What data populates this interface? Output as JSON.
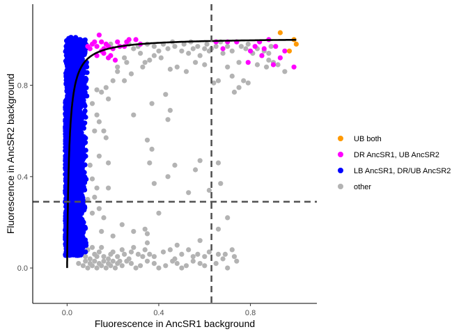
{
  "chart_data": {
    "type": "scatter",
    "xlabel": "Fluorescence in AncSR1 background",
    "ylabel": "Fluorescence in AncSR2 background",
    "xlim": [
      -0.15,
      1.09
    ],
    "ylim": [
      -0.155,
      1.155
    ],
    "x_ticks": [
      0.0,
      0.4,
      0.8
    ],
    "x_tick_labels": [
      "0.0",
      "0.4",
      "0.8"
    ],
    "y_ticks": [
      0.0,
      0.4,
      0.8
    ],
    "y_tick_labels": [
      "0.0",
      "0.4",
      "0.8"
    ],
    "threshold_lines": {
      "x": 0.63,
      "y": 0.29
    },
    "fit_curve": {
      "form": "y = 1.008*x/(0.009+x)",
      "x_range": [
        0.0,
        1.0
      ]
    },
    "legend": {
      "position": "right",
      "entries": [
        {
          "label": "UB both",
          "color": "#ff9900"
        },
        {
          "label": "DR AncSR1, UB AncSR2",
          "color": "#ff00ff"
        },
        {
          "label": "LB AncSR1, DR/UB AncSR2",
          "color": "#0000ff"
        },
        {
          "label": "other",
          "color": "#b3b3b3"
        }
      ]
    },
    "series": [
      {
        "name": "other",
        "color": "#b3b3b3",
        "points": [
          [
            0.05,
            0.02
          ],
          [
            0.07,
            0.01
          ],
          [
            0.08,
            0.03
          ],
          [
            0.09,
            0.0
          ],
          [
            0.1,
            0.02
          ],
          [
            0.11,
            0.01
          ],
          [
            0.12,
            0.03
          ],
          [
            0.13,
            0.0
          ],
          [
            0.14,
            0.02
          ],
          [
            0.15,
            0.01
          ],
          [
            0.16,
            0.03
          ],
          [
            0.17,
            0.0
          ],
          [
            0.18,
            0.02
          ],
          [
            0.19,
            0.01
          ],
          [
            0.2,
            0.03
          ],
          [
            0.21,
            0.0
          ],
          [
            0.22,
            0.02
          ],
          [
            0.24,
            0.01
          ],
          [
            0.26,
            0.03
          ],
          [
            0.28,
            0.02
          ],
          [
            0.3,
            0.0
          ],
          [
            0.32,
            0.01
          ],
          [
            0.35,
            0.03
          ],
          [
            0.38,
            0.02
          ],
          [
            0.4,
            0.0
          ],
          [
            0.43,
            0.01
          ],
          [
            0.46,
            0.03
          ],
          [
            0.48,
            0.02
          ],
          [
            0.5,
            0.0
          ],
          [
            0.52,
            0.01
          ],
          [
            0.55,
            0.03
          ],
          [
            0.58,
            0.02
          ],
          [
            0.6,
            0.01
          ],
          [
            0.65,
            0.02
          ],
          [
            0.7,
            0.0
          ],
          [
            0.74,
            0.03
          ],
          [
            0.08,
            0.05
          ],
          [
            0.12,
            0.06
          ],
          [
            0.16,
            0.05
          ],
          [
            0.2,
            0.07
          ],
          [
            0.25,
            0.06
          ],
          [
            0.28,
            0.07
          ],
          [
            0.33,
            0.05
          ],
          [
            0.36,
            0.06
          ],
          [
            0.45,
            0.08
          ],
          [
            0.5,
            0.06
          ],
          [
            0.55,
            0.05
          ],
          [
            0.62,
            0.07
          ],
          [
            0.1,
            0.04
          ],
          [
            0.14,
            0.07
          ],
          [
            0.18,
            0.04
          ],
          [
            0.22,
            0.05
          ],
          [
            0.24,
            0.08
          ],
          [
            0.27,
            0.04
          ],
          [
            0.31,
            0.06
          ],
          [
            0.34,
            0.08
          ],
          [
            0.38,
            0.05
          ],
          [
            0.42,
            0.07
          ],
          [
            0.47,
            0.04
          ],
          [
            0.53,
            0.08
          ],
          [
            0.57,
            0.06
          ],
          [
            0.6,
            0.05
          ],
          [
            0.66,
            0.06
          ],
          [
            0.68,
            0.04
          ],
          [
            0.72,
            0.08
          ],
          [
            0.09,
            0.08
          ],
          [
            0.11,
            0.09
          ],
          [
            0.13,
            0.05
          ],
          [
            0.15,
            0.09
          ],
          [
            0.19,
            0.06
          ],
          [
            0.23,
            0.03
          ],
          [
            0.29,
            0.09
          ],
          [
            0.69,
            0.06
          ],
          [
            0.73,
            0.05
          ],
          [
            0.35,
            0.11
          ],
          [
            0.58,
            0.12
          ],
          [
            0.66,
            0.17
          ],
          [
            0.7,
            0.22
          ],
          [
            0.48,
            0.1
          ],
          [
            0.34,
            0.17
          ],
          [
            0.2,
            0.14
          ],
          [
            0.15,
            0.16
          ],
          [
            0.24,
            0.19
          ],
          [
            0.16,
            0.22
          ],
          [
            0.11,
            0.24
          ],
          [
            0.14,
            0.26
          ],
          [
            0.09,
            0.3
          ],
          [
            0.12,
            0.31
          ],
          [
            0.13,
            0.35
          ],
          [
            0.18,
            0.35
          ],
          [
            0.36,
            0.46
          ],
          [
            0.62,
            0.34
          ],
          [
            0.67,
            0.37
          ],
          [
            0.44,
            0.4
          ],
          [
            0.53,
            0.33
          ],
          [
            0.4,
            0.24
          ],
          [
            0.35,
            0.15
          ],
          [
            0.29,
            0.16
          ],
          [
            0.38,
            0.37
          ],
          [
            0.11,
            0.39
          ],
          [
            0.1,
            0.45
          ],
          [
            0.14,
            0.49
          ],
          [
            0.17,
            0.57
          ],
          [
            0.18,
            0.46
          ],
          [
            0.37,
            0.52
          ],
          [
            0.47,
            0.45
          ],
          [
            0.56,
            0.43
          ],
          [
            0.66,
            0.46
          ],
          [
            0.58,
            0.47
          ],
          [
            0.16,
            0.6
          ],
          [
            0.14,
            0.64
          ],
          [
            0.12,
            0.6
          ],
          [
            0.13,
            0.67
          ],
          [
            0.18,
            0.74
          ],
          [
            0.15,
            0.77
          ],
          [
            0.11,
            0.72
          ],
          [
            0.13,
            0.78
          ],
          [
            0.17,
            0.79
          ],
          [
            0.2,
            0.82
          ],
          [
            0.25,
            0.82
          ],
          [
            0.22,
            0.86
          ],
          [
            0.28,
            0.85
          ],
          [
            0.26,
            0.9
          ],
          [
            0.33,
            0.88
          ],
          [
            0.36,
            0.91
          ],
          [
            0.29,
            0.96
          ],
          [
            0.4,
            0.95
          ],
          [
            0.44,
            0.96
          ],
          [
            0.42,
            0.98
          ],
          [
            0.47,
            0.97
          ],
          [
            0.5,
            0.95
          ],
          [
            0.53,
            0.94
          ],
          [
            0.55,
            0.96
          ],
          [
            0.58,
            0.93
          ],
          [
            0.6,
            0.96
          ],
          [
            0.62,
            0.95
          ],
          [
            0.65,
            0.97
          ],
          [
            0.68,
            0.94
          ],
          [
            0.72,
            0.95
          ],
          [
            0.76,
            0.97
          ],
          [
            0.79,
            0.98
          ],
          [
            0.83,
            0.96
          ],
          [
            0.85,
            0.93
          ],
          [
            0.88,
            0.94
          ],
          [
            0.9,
            0.9
          ],
          [
            0.92,
            0.89
          ],
          [
            0.87,
            0.88
          ],
          [
            0.83,
            0.89
          ],
          [
            0.95,
            0.86
          ],
          [
            0.7,
            0.88
          ],
          [
            0.75,
            0.9
          ],
          [
            0.64,
            0.81
          ],
          [
            0.66,
            0.82
          ],
          [
            0.77,
            0.82
          ],
          [
            0.79,
            0.81
          ],
          [
            0.75,
            0.79
          ],
          [
            0.72,
            0.84
          ],
          [
            0.73,
            0.77
          ],
          [
            0.88,
            0.91
          ],
          [
            0.45,
            0.87
          ],
          [
            0.41,
            0.92
          ],
          [
            0.38,
            0.93
          ],
          [
            0.32,
            0.94
          ],
          [
            0.34,
            0.9
          ],
          [
            0.48,
            0.88
          ],
          [
            0.52,
            0.86
          ],
          [
            0.56,
            0.9
          ],
          [
            0.6,
            0.89
          ],
          [
            0.25,
            0.92
          ],
          [
            0.22,
            0.88
          ],
          [
            0.43,
            0.76
          ],
          [
            0.37,
            0.72
          ],
          [
            0.45,
            0.69
          ],
          [
            0.44,
            0.65
          ],
          [
            0.29,
            0.67
          ],
          [
            0.35,
            0.56
          ],
          [
            0.19,
            0.98
          ],
          [
            0.23,
            0.97
          ],
          [
            0.27,
            0.98
          ],
          [
            0.31,
            0.97
          ],
          [
            0.35,
            0.98
          ],
          [
            0.38,
            0.97
          ],
          [
            0.46,
            0.99
          ],
          [
            0.51,
            0.98
          ],
          [
            0.54,
            0.99
          ],
          [
            0.57,
            0.97
          ],
          [
            0.61,
            0.98
          ],
          [
            0.63,
            0.96
          ],
          [
            0.67,
            0.99
          ],
          [
            0.7,
            0.97
          ],
          [
            0.74,
            0.99
          ],
          [
            0.78,
            0.96
          ],
          [
            0.81,
            0.94
          ],
          [
            0.86,
            0.95
          ],
          [
            0.89,
            0.97
          ]
        ]
      },
      {
        "name": "DR AncSR1, UB AncSR2",
        "color": "#ff00ff",
        "points": [
          [
            0.09,
            0.97
          ],
          [
            0.1,
            0.96
          ],
          [
            0.11,
            0.98
          ],
          [
            0.12,
            0.99
          ],
          [
            0.13,
            0.97
          ],
          [
            0.14,
            1.02
          ],
          [
            0.15,
            0.99
          ],
          [
            0.16,
            0.96
          ],
          [
            0.17,
            0.98
          ],
          [
            0.18,
            0.97
          ],
          [
            0.15,
            0.95
          ],
          [
            0.19,
            0.93
          ],
          [
            0.21,
            0.91
          ],
          [
            0.22,
            0.99
          ],
          [
            0.23,
            0.97
          ],
          [
            0.2,
            0.96
          ],
          [
            0.26,
            0.99
          ],
          [
            0.3,
            1.0
          ],
          [
            0.32,
            0.98
          ],
          [
            0.16,
            0.94
          ],
          [
            0.25,
            0.97
          ],
          [
            0.27,
            1.0
          ],
          [
            0.65,
            0.99
          ],
          [
            0.68,
            0.96
          ],
          [
            0.7,
            0.99
          ],
          [
            0.74,
            0.99
          ],
          [
            0.8,
            0.95
          ],
          [
            0.82,
            0.97
          ],
          [
            0.84,
            0.99
          ],
          [
            0.88,
            1.0
          ],
          [
            0.86,
            0.96
          ],
          [
            0.91,
            0.97
          ],
          [
            0.93,
            0.92
          ],
          [
            0.95,
            0.95
          ],
          [
            0.9,
            0.89
          ],
          [
            0.99,
            0.88
          ],
          [
            0.79,
            0.9
          ],
          [
            0.85,
            0.93
          ],
          [
            0.13,
            0.93
          ],
          [
            0.18,
            0.92
          ]
        ]
      },
      {
        "name": "UB both",
        "color": "#ff9900",
        "points": [
          [
            0.93,
            1.03
          ],
          [
            0.97,
            0.95
          ],
          [
            0.99,
            1.0
          ],
          [
            1.0,
            0.98
          ]
        ]
      }
    ]
  }
}
